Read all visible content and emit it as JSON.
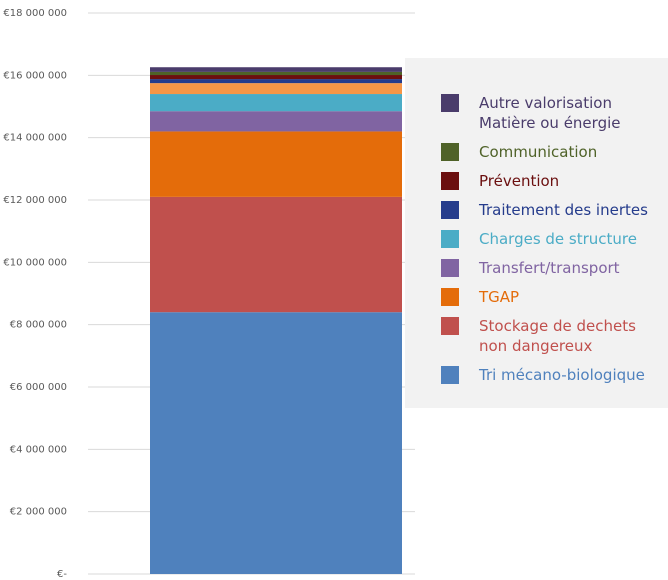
{
  "chart_data": {
    "type": "stacked-bar",
    "categories": [
      null
    ],
    "series": [
      {
        "name": "Tri mécano-biologique",
        "color": "#4f81bd",
        "values": [
          8400000
        ]
      },
      {
        "name": "Stockage de dechets non dangereux",
        "color": "#c0504d",
        "values": [
          3700000
        ]
      },
      {
        "name": "TGAP",
        "color": "#e46c0a",
        "values": [
          2100000
        ]
      },
      {
        "name": "Transfert/transport",
        "color": "#8064a2",
        "values": [
          650000
        ]
      },
      {
        "name": "Charges de structure",
        "color": "#4bacc6",
        "values": [
          550000
        ]
      },
      {
        "name": null,
        "color": "#f79646",
        "values": [
          350000
        ]
      },
      {
        "name": "Traitement des inertes",
        "color": "#253c8c",
        "values": [
          130000
        ]
      },
      {
        "name": "Prévention",
        "color": "#6b0f0f",
        "values": [
          130000
        ]
      },
      {
        "name": "Communication",
        "color": "#4f6228",
        "values": [
          100000
        ]
      },
      {
        "name": "Autre valorisation Matière ou énergie",
        "color": "#4a3c6b",
        "values": [
          150000
        ]
      }
    ],
    "ylim": [
      0,
      18000000
    ],
    "yticks": [
      {
        "value": 0,
        "label": "€-"
      },
      {
        "value": 2000000,
        "label": "€2 000 000"
      },
      {
        "value": 4000000,
        "label": "€4 000 000"
      },
      {
        "value": 6000000,
        "label": "€6 000 000"
      },
      {
        "value": 8000000,
        "label": "€8 000 000"
      },
      {
        "value": 10000000,
        "label": "€10 000 000"
      },
      {
        "value": 12000000,
        "label": "€12 000 000"
      },
      {
        "value": 14000000,
        "label": "€14 000 000"
      },
      {
        "value": 16000000,
        "label": "€16 000 000"
      },
      {
        "value": 18000000,
        "label": "€18 000 000"
      }
    ],
    "grid": true
  }
}
